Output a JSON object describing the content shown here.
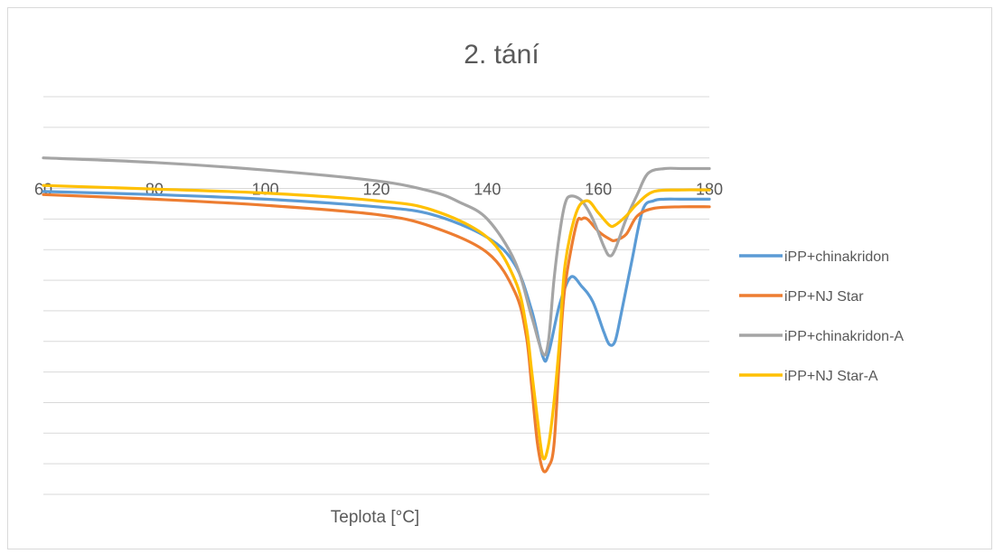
{
  "chart_data": {
    "type": "line",
    "title": "2. tání",
    "xlabel": "Teplota [°C]",
    "ylabel": "",
    "xlim": [
      60,
      180
    ],
    "ylim": [
      -10,
      3
    ],
    "x_ticks": [
      "60",
      "80",
      "100",
      "120",
      "140",
      "160",
      "180"
    ],
    "grid": true,
    "legend_position": "right",
    "series": [
      {
        "name": "iPP+chinakridon",
        "color": "#5b9bd5",
        "points": [
          [
            60,
            -0.1
          ],
          [
            80,
            -0.2
          ],
          [
            100,
            -0.35
          ],
          [
            120,
            -0.6
          ],
          [
            130,
            -0.85
          ],
          [
            140,
            -1.6
          ],
          [
            145,
            -2.5
          ],
          [
            148,
            -4.0
          ],
          [
            150,
            -5.5
          ],
          [
            151,
            -5.4
          ],
          [
            153,
            -3.8
          ],
          [
            155,
            -2.9
          ],
          [
            157,
            -3.2
          ],
          [
            159,
            -3.7
          ],
          [
            161,
            -4.7
          ],
          [
            162,
            -5.1
          ],
          [
            163,
            -5.0
          ],
          [
            164,
            -4.2
          ],
          [
            166,
            -2.4
          ],
          [
            168,
            -0.7
          ],
          [
            170,
            -0.4
          ],
          [
            172,
            -0.35
          ],
          [
            175,
            -0.35
          ],
          [
            180,
            -0.35
          ]
        ]
      },
      {
        "name": "iPP+NJ Star",
        "color": "#ed7d31",
        "points": [
          [
            60,
            -0.2
          ],
          [
            80,
            -0.35
          ],
          [
            100,
            -0.55
          ],
          [
            120,
            -0.85
          ],
          [
            130,
            -1.25
          ],
          [
            140,
            -2.1
          ],
          [
            145,
            -3.4
          ],
          [
            147,
            -4.8
          ],
          [
            148,
            -6.5
          ],
          [
            149,
            -8.3
          ],
          [
            150,
            -9.2
          ],
          [
            151,
            -9.1
          ],
          [
            152,
            -8.4
          ],
          [
            153,
            -5.5
          ],
          [
            154,
            -3.2
          ],
          [
            156,
            -1.2
          ],
          [
            157,
            -1.0
          ],
          [
            158,
            -1.0
          ],
          [
            160,
            -1.4
          ],
          [
            162,
            -1.65
          ],
          [
            163,
            -1.7
          ],
          [
            165,
            -1.5
          ],
          [
            167,
            -0.9
          ],
          [
            170,
            -0.65
          ],
          [
            175,
            -0.6
          ],
          [
            180,
            -0.6
          ]
        ]
      },
      {
        "name": "iPP+chinakridon-A",
        "color": "#a5a5a5",
        "points": [
          [
            60,
            1.0
          ],
          [
            80,
            0.85
          ],
          [
            100,
            0.6
          ],
          [
            120,
            0.25
          ],
          [
            130,
            -0.1
          ],
          [
            135,
            -0.45
          ],
          [
            140,
            -1.0
          ],
          [
            145,
            -2.4
          ],
          [
            148,
            -4.2
          ],
          [
            150,
            -5.4
          ],
          [
            151,
            -5.0
          ],
          [
            152,
            -3.0
          ],
          [
            153,
            -1.5
          ],
          [
            154,
            -0.5
          ],
          [
            155,
            -0.25
          ],
          [
            157,
            -0.4
          ],
          [
            159,
            -1.0
          ],
          [
            161,
            -1.9
          ],
          [
            162,
            -2.2
          ],
          [
            163,
            -2.0
          ],
          [
            165,
            -1.0
          ],
          [
            167,
            -0.2
          ],
          [
            169,
            0.5
          ],
          [
            172,
            0.65
          ],
          [
            175,
            0.65
          ],
          [
            180,
            0.65
          ]
        ]
      },
      {
        "name": "iPP+NJ Star-A",
        "color": "#ffc000",
        "points": [
          [
            60,
            0.1
          ],
          [
            80,
            -0.02
          ],
          [
            100,
            -0.15
          ],
          [
            120,
            -0.4
          ],
          [
            130,
            -0.7
          ],
          [
            140,
            -1.6
          ],
          [
            145,
            -3.0
          ],
          [
            147,
            -4.5
          ],
          [
            148,
            -6.0
          ],
          [
            149,
            -7.5
          ],
          [
            150,
            -8.8
          ],
          [
            151,
            -8.4
          ],
          [
            152,
            -7.0
          ],
          [
            153,
            -5.0
          ],
          [
            154,
            -2.5
          ],
          [
            156,
            -0.8
          ],
          [
            158,
            -0.4
          ],
          [
            160,
            -0.8
          ],
          [
            162,
            -1.2
          ],
          [
            163,
            -1.2
          ],
          [
            165,
            -0.9
          ],
          [
            167,
            -0.5
          ],
          [
            170,
            -0.1
          ],
          [
            175,
            -0.05
          ],
          [
            180,
            -0.05
          ]
        ]
      }
    ]
  }
}
